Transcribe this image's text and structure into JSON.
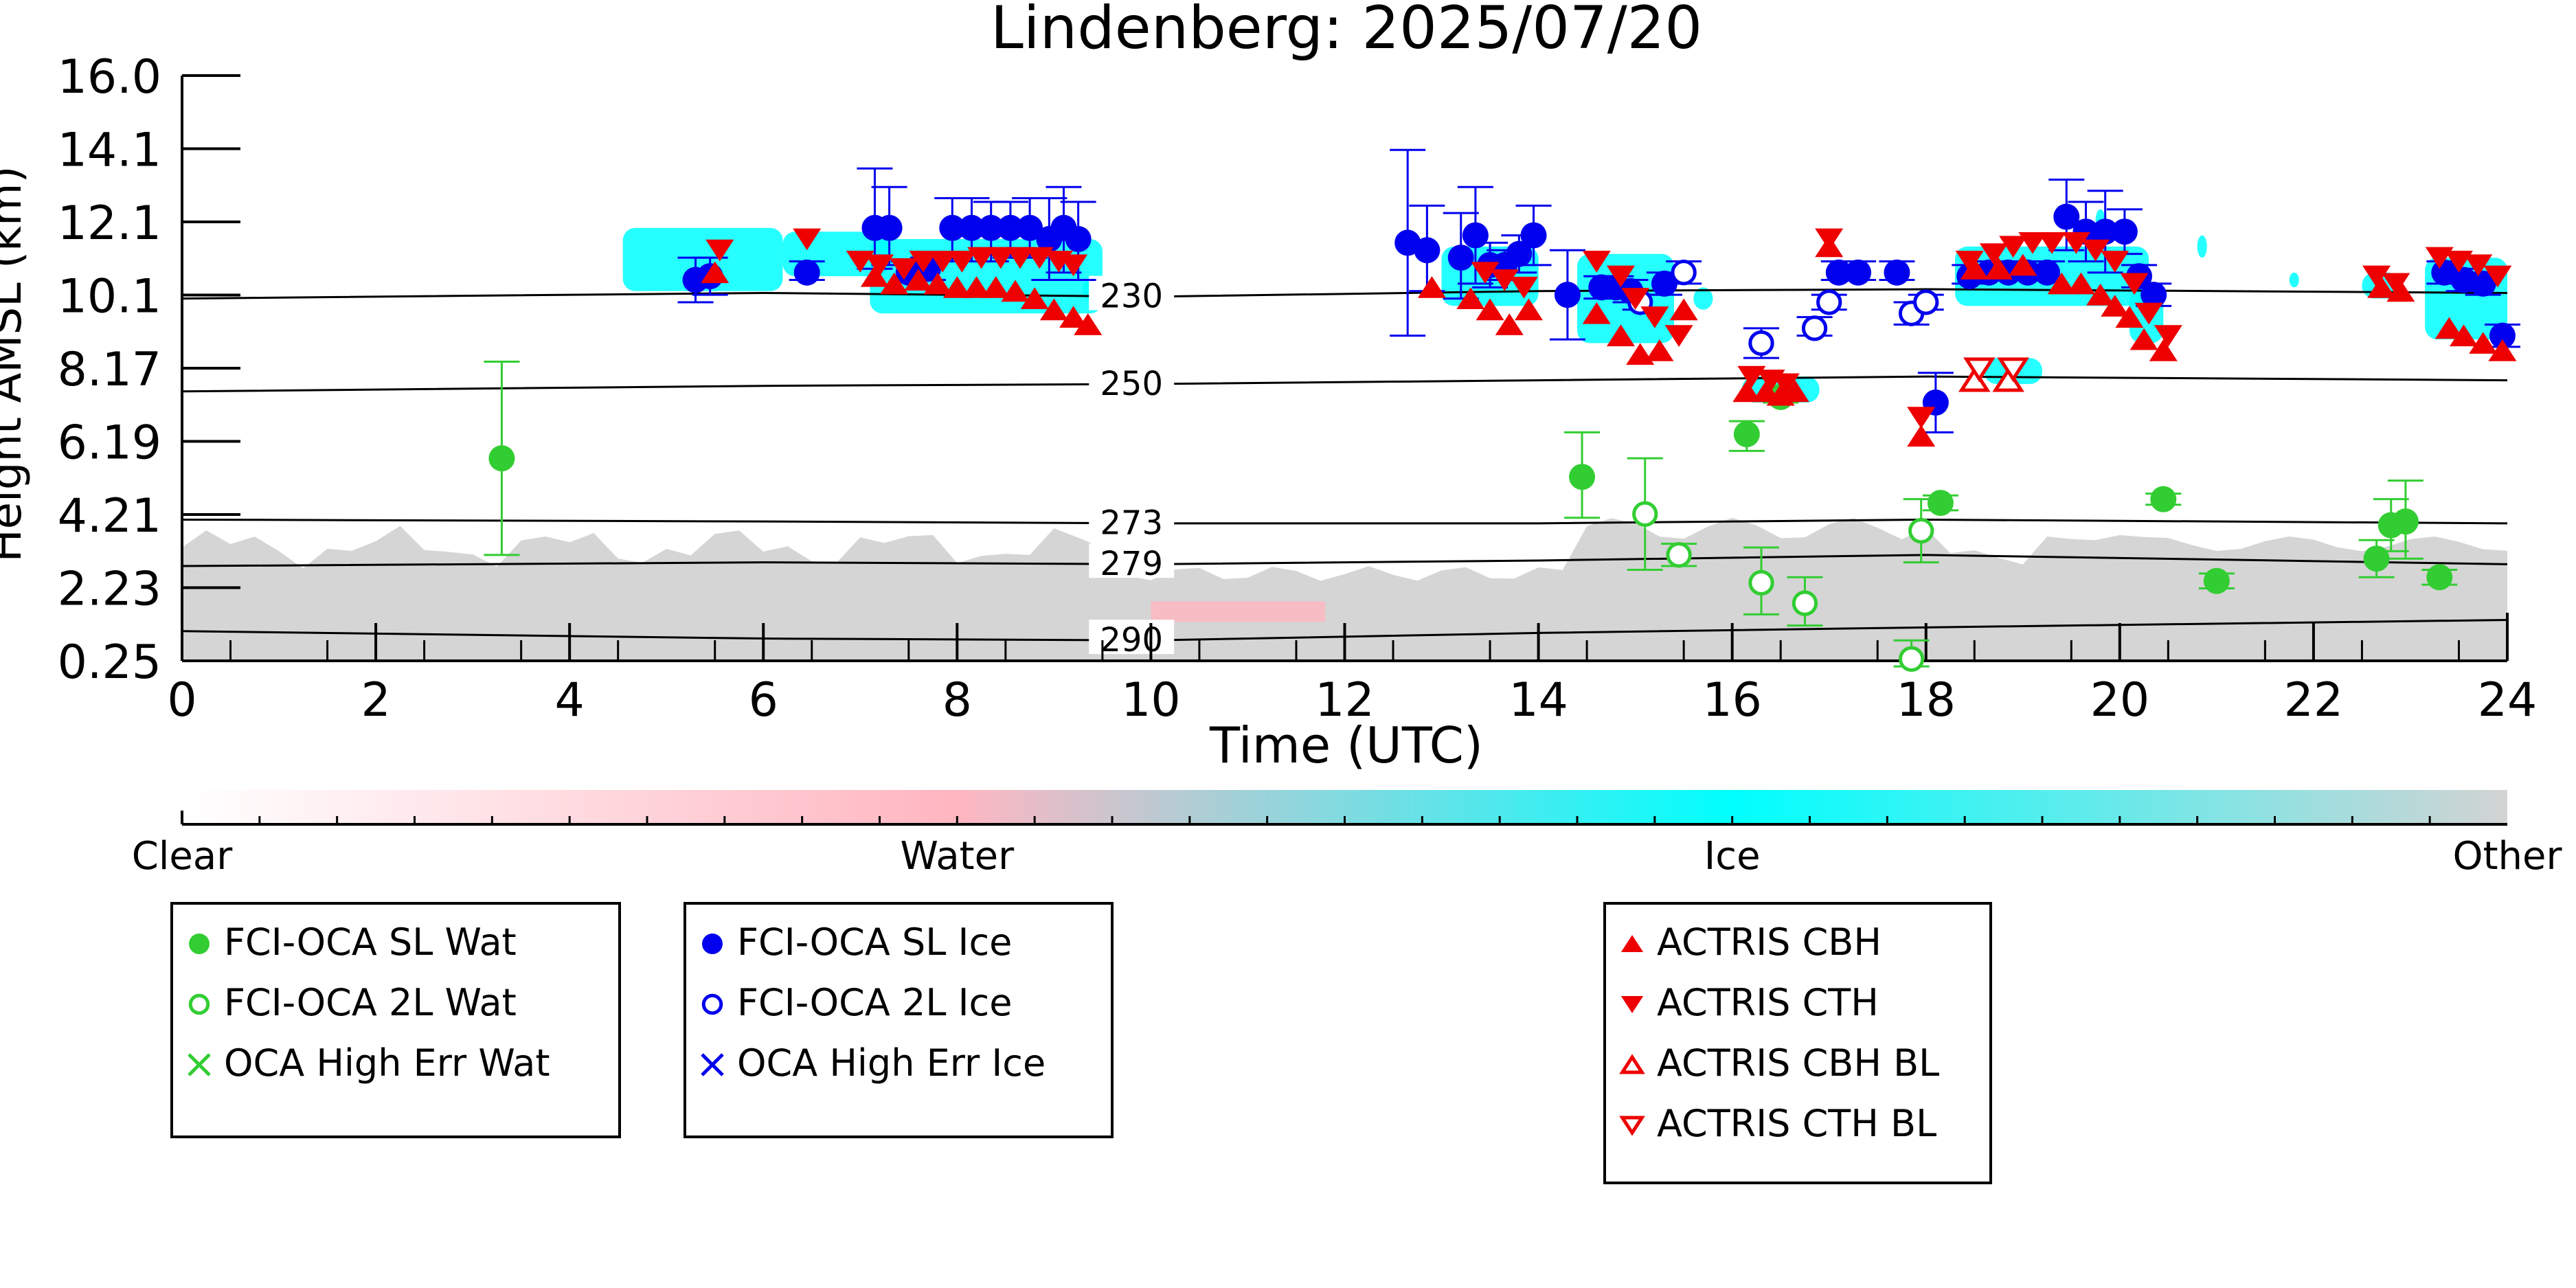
{
  "chart_data": {
    "type": "scatter",
    "title": "Lindenberg: 2025/07/20",
    "xlabel": "Time (UTC)",
    "ylabel": "Height AMSL (km)",
    "xlim": [
      0,
      24
    ],
    "ylim": [
      0.25,
      16.0
    ],
    "x_ticks": [
      "0",
      "2",
      "4",
      "6",
      "8",
      "10",
      "12",
      "14",
      "16",
      "18",
      "20",
      "22",
      "24"
    ],
    "y_ticks": [
      "0.25",
      "2.23",
      "4.21",
      "6.19",
      "8.17",
      "10.1",
      "12.1",
      "14.1",
      "16.0"
    ],
    "grid": false,
    "colorbar": {
      "labels": [
        "Clear",
        "Water",
        "Ice",
        "Other"
      ],
      "colors": [
        "#ffffff",
        "#ffb6c1",
        "#00ffff",
        "#d3d3d3"
      ]
    },
    "isotherms": [
      {
        "label": "230",
        "heights": [
          [
            0,
            10.0
          ],
          [
            6,
            10.15
          ],
          [
            10,
            10.05
          ],
          [
            14,
            10.2
          ],
          [
            18,
            10.25
          ],
          [
            24,
            10.15
          ]
        ]
      },
      {
        "label": "250",
        "heights": [
          [
            0,
            7.5
          ],
          [
            6,
            7.65
          ],
          [
            10,
            7.7
          ],
          [
            14,
            7.8
          ],
          [
            18,
            7.9
          ],
          [
            24,
            7.8
          ]
        ]
      },
      {
        "label": "273",
        "heights": [
          [
            0,
            4.05
          ],
          [
            6,
            4.0
          ],
          [
            10,
            3.95
          ],
          [
            14,
            3.95
          ],
          [
            18,
            4.05
          ],
          [
            24,
            3.95
          ]
        ]
      },
      {
        "label": "279",
        "heights": [
          [
            0,
            2.8
          ],
          [
            6,
            2.9
          ],
          [
            10,
            2.85
          ],
          [
            14,
            2.95
          ],
          [
            18,
            3.1
          ],
          [
            24,
            2.85
          ]
        ]
      },
      {
        "label": "290",
        "heights": [
          [
            0,
            1.05
          ],
          [
            6,
            0.85
          ],
          [
            10,
            0.8
          ],
          [
            14,
            1.0
          ],
          [
            18,
            1.15
          ],
          [
            24,
            1.35
          ]
        ]
      }
    ],
    "legends": [
      {
        "entries": [
          {
            "label": "FCI-OCA SL Wat",
            "marker": "filled-circle",
            "color": "#32cd32"
          },
          {
            "label": "FCI-OCA 2L Wat",
            "marker": "open-circle",
            "color": "#32cd32"
          },
          {
            "label": "OCA High Err Wat",
            "marker": "x",
            "color": "#32cd32"
          }
        ]
      },
      {
        "entries": [
          {
            "label": "FCI-OCA SL Ice",
            "marker": "filled-circle",
            "color": "#0000ee"
          },
          {
            "label": "FCI-OCA 2L Ice",
            "marker": "open-circle",
            "color": "#0000ee"
          },
          {
            "label": "OCA High Err Ice",
            "marker": "x",
            "color": "#0000ee"
          }
        ]
      },
      {
        "entries": [
          {
            "label": "ACTRIS CBH",
            "marker": "triangle-up",
            "color": "#ee0000"
          },
          {
            "label": "ACTRIS CTH",
            "marker": "triangle-down",
            "color": "#ee0000"
          },
          {
            "label": "ACTRIS CBH BL",
            "marker": "open-triangle-up",
            "color": "#ee0000"
          },
          {
            "label": "ACTRIS CTH BL",
            "marker": "open-triangle-down",
            "color": "#ee0000"
          }
        ]
      }
    ],
    "series": [
      {
        "name": "FCI-OCA SL Wat",
        "points": [
          [
            3.3,
            5.7,
            3.1,
            8.3
          ],
          [
            14.45,
            5.2,
            4.1,
            6.4
          ],
          [
            16.15,
            6.35,
            5.9,
            6.7
          ],
          [
            16.5,
            7.35,
            7.2,
            7.55
          ],
          [
            18.15,
            4.5,
            4.3,
            4.7
          ],
          [
            20.45,
            4.6,
            4.45,
            4.75
          ],
          [
            21.0,
            2.4,
            2.2,
            2.6
          ],
          [
            22.65,
            3.0,
            2.5,
            3.5
          ],
          [
            22.8,
            3.9,
            3.2,
            4.6
          ],
          [
            22.95,
            4.0,
            3.0,
            5.1
          ],
          [
            23.3,
            2.5,
            2.3,
            2.7
          ]
        ]
      },
      {
        "name": "FCI-OCA 2L Wat",
        "points": [
          [
            15.1,
            4.2,
            2.7,
            5.7
          ],
          [
            15.45,
            3.1,
            2.8,
            3.4
          ],
          [
            16.3,
            2.35,
            1.5,
            3.3
          ],
          [
            16.75,
            1.8,
            1.2,
            2.5
          ],
          [
            17.85,
            0.3,
            0.1,
            0.8
          ],
          [
            17.95,
            3.75,
            2.9,
            4.6
          ]
        ]
      },
      {
        "name": "FCI-OCA SL Ice",
        "points": [
          [
            5.3,
            10.5,
            9.9,
            11.1
          ],
          [
            5.45,
            10.6,
            10.1,
            11.1
          ],
          [
            6.45,
            10.7,
            10.5,
            11.0
          ],
          [
            7.15,
            11.9,
            10.8,
            13.5
          ],
          [
            7.3,
            11.9,
            10.9,
            13.0
          ],
          [
            7.5,
            10.7,
            10.5,
            11.0
          ],
          [
            7.7,
            10.8,
            10.5,
            11.1
          ],
          [
            7.95,
            11.9,
            11.0,
            12.7
          ],
          [
            8.15,
            11.9,
            11.0,
            12.7
          ],
          [
            8.35,
            11.9,
            11.0,
            12.6
          ],
          [
            8.55,
            11.9,
            11.1,
            12.6
          ],
          [
            8.75,
            11.9,
            11.1,
            12.7
          ],
          [
            8.95,
            11.6,
            10.5,
            12.7
          ],
          [
            9.1,
            11.9,
            10.7,
            13.0
          ],
          [
            9.25,
            11.6,
            10.5,
            12.6
          ],
          [
            12.65,
            11.5,
            9.0,
            14.0
          ],
          [
            12.85,
            11.3,
            10.2,
            12.5
          ],
          [
            13.2,
            11.1,
            10.0,
            12.3
          ],
          [
            13.35,
            11.7,
            10.4,
            13.0
          ],
          [
            13.5,
            10.9,
            10.3,
            11.5
          ],
          [
            13.65,
            10.9,
            10.5,
            11.3
          ],
          [
            13.8,
            11.2,
            10.7,
            11.7
          ],
          [
            13.95,
            11.7,
            10.9,
            12.5
          ],
          [
            14.3,
            10.1,
            8.9,
            11.3
          ],
          [
            14.65,
            10.3,
            10.0,
            10.6
          ],
          [
            14.8,
            10.3,
            10.0,
            10.6
          ],
          [
            14.95,
            10.2,
            9.9,
            10.5
          ],
          [
            15.3,
            10.4,
            10.1,
            10.7
          ],
          [
            17.1,
            10.7,
            10.5,
            11.0
          ],
          [
            17.3,
            10.7,
            10.5,
            11.0
          ],
          [
            17.7,
            10.7,
            10.5,
            11.0
          ],
          [
            18.1,
            7.2,
            6.4,
            8.0
          ],
          [
            18.45,
            10.6,
            10.4,
            10.9
          ],
          [
            18.65,
            10.7,
            10.5,
            11.0
          ],
          [
            18.85,
            10.7,
            10.5,
            11.0
          ],
          [
            19.05,
            10.7,
            10.5,
            11.0
          ],
          [
            19.25,
            10.7,
            10.5,
            11.0
          ],
          [
            19.45,
            12.2,
            11.3,
            13.2
          ],
          [
            19.65,
            11.8,
            11.0,
            12.6
          ],
          [
            19.85,
            11.8,
            10.7,
            12.9
          ],
          [
            20.05,
            11.8,
            11.2,
            12.4
          ],
          [
            20.2,
            10.6,
            10.3,
            10.9
          ],
          [
            20.35,
            10.1,
            9.8,
            10.4
          ],
          [
            23.35,
            10.7,
            10.4,
            11.0
          ],
          [
            23.55,
            10.5,
            10.2,
            10.8
          ],
          [
            23.75,
            10.4,
            10.1,
            10.7
          ],
          [
            23.95,
            9.0,
            8.7,
            9.3
          ]
        ]
      },
      {
        "name": "FCI-OCA 2L Ice",
        "points": [
          [
            15.05,
            9.9,
            9.7,
            10.1
          ],
          [
            15.5,
            10.7,
            10.4,
            11.0
          ],
          [
            16.3,
            8.8,
            8.4,
            9.2
          ],
          [
            16.85,
            9.2,
            9.0,
            9.5
          ],
          [
            17.0,
            9.9,
            9.7,
            10.1
          ],
          [
            17.85,
            9.6,
            9.3,
            9.9
          ],
          [
            18.0,
            9.9,
            9.7,
            10.1
          ]
        ]
      },
      {
        "name": "OCA High Err Wat",
        "points": []
      },
      {
        "name": "OCA High Err Ice",
        "points": []
      },
      {
        "name": "ACTRIS CBH",
        "points": [
          [
            5.5,
            10.7
          ],
          [
            7.15,
            10.6
          ],
          [
            7.35,
            10.4
          ],
          [
            7.6,
            10.5
          ],
          [
            7.8,
            10.4
          ],
          [
            8.0,
            10.3
          ],
          [
            8.2,
            10.3
          ],
          [
            8.4,
            10.3
          ],
          [
            8.6,
            10.2
          ],
          [
            8.8,
            10.0
          ],
          [
            9.0,
            9.7
          ],
          [
            9.2,
            9.5
          ],
          [
            9.35,
            9.3
          ],
          [
            12.9,
            10.3
          ],
          [
            13.3,
            10.0
          ],
          [
            13.5,
            9.7
          ],
          [
            13.7,
            9.3
          ],
          [
            13.9,
            9.7
          ],
          [
            14.6,
            9.6
          ],
          [
            14.85,
            9.0
          ],
          [
            15.05,
            8.5
          ],
          [
            15.25,
            8.6
          ],
          [
            15.5,
            9.7
          ],
          [
            16.15,
            7.5
          ],
          [
            16.35,
            7.5
          ],
          [
            16.5,
            7.4
          ],
          [
            16.65,
            7.5
          ],
          [
            17.0,
            11.4
          ],
          [
            17.95,
            6.3
          ],
          [
            18.5,
            10.8
          ],
          [
            18.75,
            10.8
          ],
          [
            19.0,
            10.9
          ],
          [
            19.4,
            10.4
          ],
          [
            19.6,
            10.4
          ],
          [
            19.8,
            10.1
          ],
          [
            19.95,
            9.8
          ],
          [
            20.1,
            9.5
          ],
          [
            20.25,
            8.9
          ],
          [
            20.45,
            8.6
          ],
          [
            22.7,
            10.3
          ],
          [
            22.9,
            10.2
          ],
          [
            23.4,
            9.2
          ],
          [
            23.55,
            9.0
          ],
          [
            23.75,
            8.8
          ],
          [
            23.95,
            8.6
          ]
        ]
      },
      {
        "name": "ACTRIS CTH",
        "points": [
          [
            5.55,
            11.3
          ],
          [
            6.45,
            11.6
          ],
          [
            7.0,
            11.0
          ],
          [
            7.2,
            10.9
          ],
          [
            7.45,
            10.8
          ],
          [
            7.65,
            11.0
          ],
          [
            7.85,
            11.0
          ],
          [
            8.05,
            11.0
          ],
          [
            8.25,
            11.1
          ],
          [
            8.45,
            11.1
          ],
          [
            8.65,
            11.1
          ],
          [
            8.85,
            11.1
          ],
          [
            9.05,
            11.0
          ],
          [
            9.2,
            10.9
          ],
          [
            13.45,
            10.7
          ],
          [
            13.65,
            10.5
          ],
          [
            13.85,
            10.3
          ],
          [
            14.6,
            11.0
          ],
          [
            14.85,
            10.6
          ],
          [
            15.0,
            10.0
          ],
          [
            15.2,
            9.5
          ],
          [
            15.45,
            9.0
          ],
          [
            16.2,
            7.9
          ],
          [
            16.4,
            7.8
          ],
          [
            16.55,
            7.7
          ],
          [
            17.0,
            11.6
          ],
          [
            17.95,
            6.8
          ],
          [
            18.45,
            11.0
          ],
          [
            18.7,
            11.2
          ],
          [
            18.9,
            11.4
          ],
          [
            19.1,
            11.5
          ],
          [
            19.3,
            11.5
          ],
          [
            19.55,
            11.5
          ],
          [
            19.75,
            11.3
          ],
          [
            19.95,
            11.0
          ],
          [
            20.15,
            10.4
          ],
          [
            20.3,
            9.6
          ],
          [
            20.5,
            9.0
          ],
          [
            22.65,
            10.6
          ],
          [
            22.85,
            10.4
          ],
          [
            23.3,
            11.1
          ],
          [
            23.5,
            11.0
          ],
          [
            23.7,
            10.9
          ],
          [
            23.9,
            10.6
          ]
        ]
      },
      {
        "name": "ACTRIS CBH BL",
        "points": [
          [
            18.5,
            7.8
          ],
          [
            18.85,
            7.8
          ]
        ]
      },
      {
        "name": "ACTRIS CTH BL",
        "points": [
          [
            18.55,
            8.1
          ],
          [
            18.9,
            8.1
          ]
        ]
      }
    ]
  }
}
